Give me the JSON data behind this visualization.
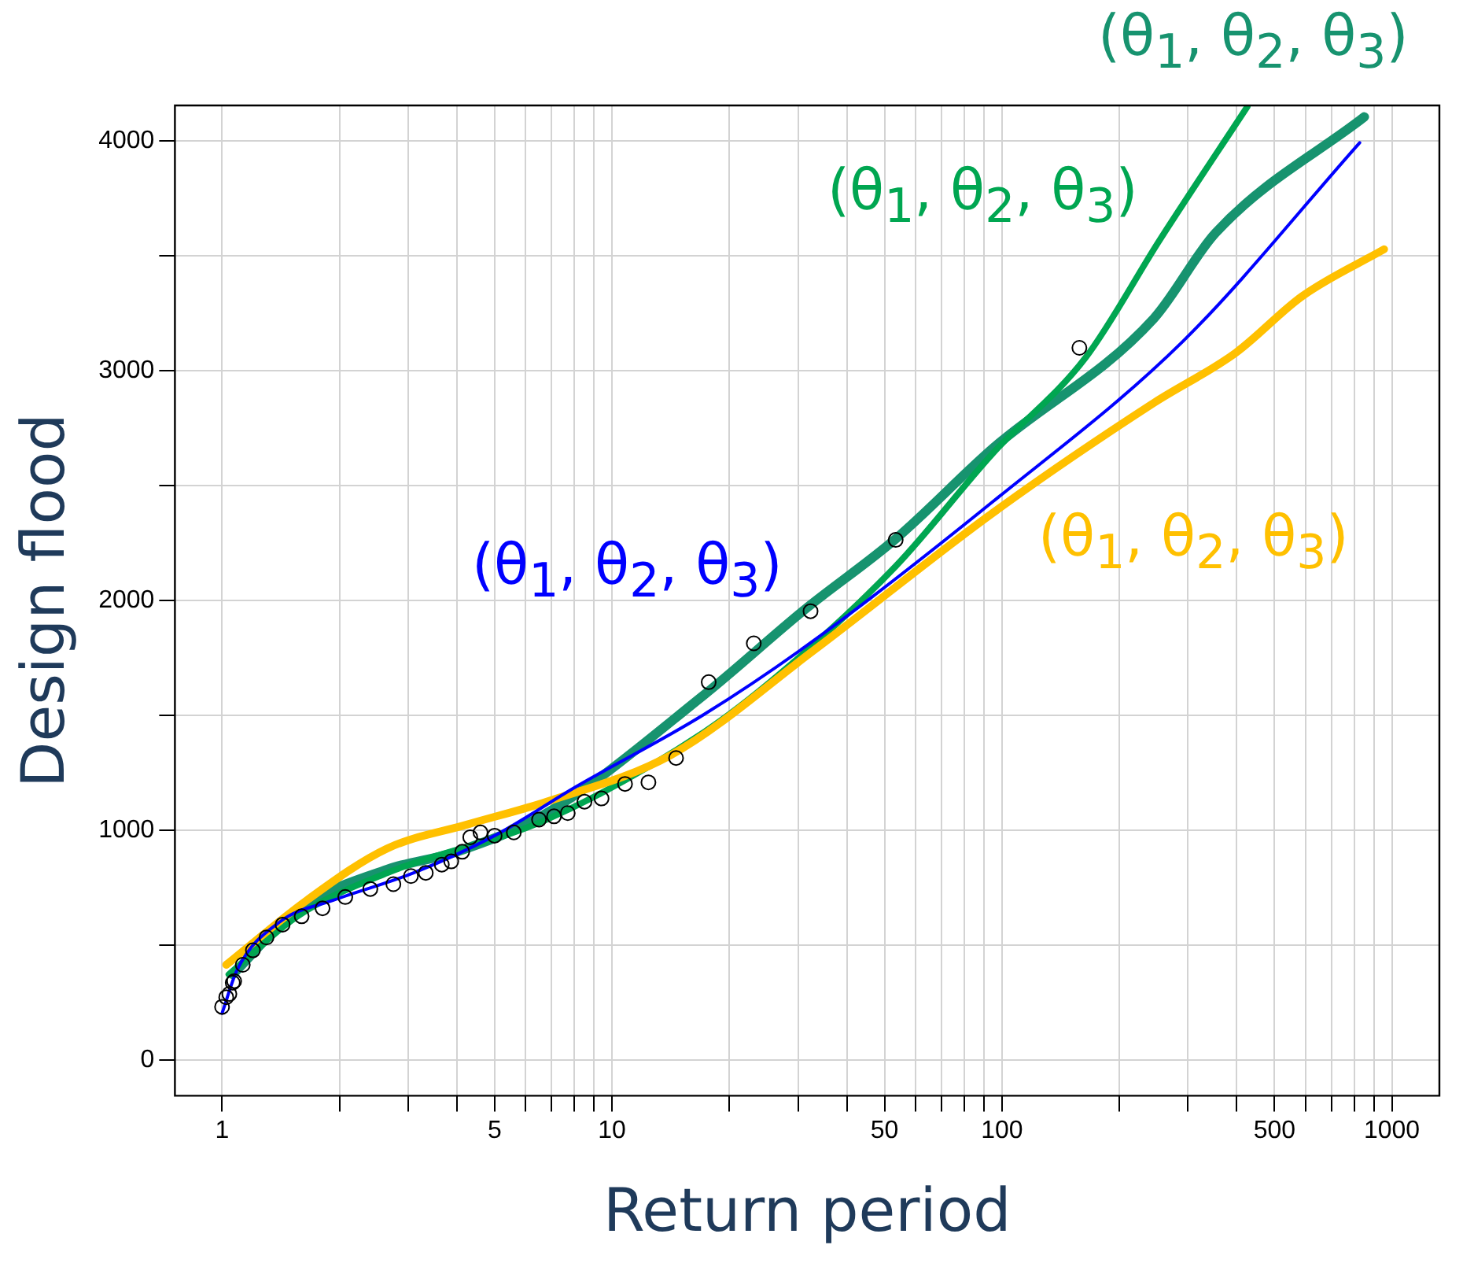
{
  "chart_data": {
    "type": "line",
    "xlabel": "Return period",
    "ylabel": "Design flood",
    "log": "x",
    "xlim": [
      0.757,
      1324
    ],
    "ylim": [
      -155,
      4155
    ],
    "xticks": [
      1,
      {
        "value": 2,
        "label": null
      },
      {
        "value": 3,
        "label": null
      },
      {
        "value": 4,
        "label": null
      },
      5,
      {
        "value": 6,
        "label": null
      },
      {
        "value": 7,
        "label": null
      },
      {
        "value": 8,
        "label": null
      },
      {
        "value": 9,
        "label": null
      },
      10,
      {
        "value": 20,
        "label": null
      },
      {
        "value": 30,
        "label": null
      },
      {
        "value": 40,
        "label": null
      },
      50,
      {
        "value": 60,
        "label": null
      },
      {
        "value": 70,
        "label": null
      },
      {
        "value": 80,
        "label": null
      },
      {
        "value": 90,
        "label": null
      },
      100,
      {
        "value": 200,
        "label": null
      },
      {
        "value": 300,
        "label": null
      },
      {
        "value": 400,
        "label": null
      },
      500,
      {
        "value": 600,
        "label": null
      },
      {
        "value": 700,
        "label": null
      },
      {
        "value": 800,
        "label": null
      },
      {
        "value": 900,
        "label": null
      },
      1000
    ],
    "yticks": [
      0,
      {
        "value": 500,
        "label": null
      },
      1000,
      {
        "value": 1500,
        "label": null
      },
      2000,
      {
        "value": 2500,
        "label": null
      },
      3000,
      {
        "value": 3500,
        "label": null
      },
      4000
    ],
    "grid": true,
    "legend": false,
    "series": [
      {
        "type": "scatter",
        "marker": "circle",
        "color": "#000000",
        "x": [
          1,
          1.025,
          1.044,
          1.065,
          1.074,
          1.13,
          1.2,
          1.3,
          1.43,
          1.6,
          1.81,
          2.07,
          2.4,
          2.75,
          3.05,
          3.33,
          3.66,
          3.87,
          4.13,
          4.33,
          4.6,
          5.0,
          5.6,
          6.5,
          7.1,
          7.7,
          8.5,
          9.4,
          10.8,
          12.4,
          14.6,
          17.7,
          23.1,
          32.3,
          53.4,
          158
        ],
        "values": [
          232,
          274,
          288,
          337,
          344,
          415,
          478,
          534,
          590,
          626,
          661,
          710,
          745,
          766,
          801,
          815,
          851,
          865,
          907,
          970,
          991,
          977,
          991,
          1047,
          1061,
          1075,
          1125,
          1139,
          1202,
          1209,
          1315,
          1645,
          1814,
          1954,
          2264,
          3100
        ]
      },
      {
        "name": "(θ$_{1}$, θ$_{2}$, θ$_{3}$)",
        "marker": "none",
        "color": "#0000ff",
        "x": [
          1,
          1.094,
          1.415,
          1.93,
          3.1,
          5,
          8.05,
          17.2,
          32.6,
          95,
          291,
          827
        ],
        "values": [
          204,
          394,
          605,
          696,
          815,
          977,
          1188,
          1504,
          1821,
          2432,
          3128,
          3993
        ]
      },
      {
        "name": "(θ$_{1}$, θ$_{2}$, θ$_{3}$)",
        "marker": "none",
        "color": "#ffc000",
        "x": [
          1.025,
          1.65,
          2.65,
          4.26,
          6.8,
          14.2,
          32.6,
          95,
          245,
          398,
          589,
          955
        ],
        "values": [
          415,
          696,
          921,
          1026,
          1125,
          1329,
          1778,
          2383,
          2860,
          3079,
          3325,
          3529
        ]
      },
      {
        "name": "(θ$_{1}$, θ$_{2}$, θ$_{3}$)",
        "marker": "none",
        "color": "#00a651",
        "x": [
          1.04,
          1.56,
          2.65,
          6.8,
          17.2,
          26.9,
          53.5,
          95,
          164,
          254,
          426
        ],
        "values": [
          373,
          626,
          815,
          1047,
          1427,
          1680,
          2151,
          2643,
          3058,
          3570,
          4150
        ]
      },
      {
        "name": "(θ$_{1}$, θ$_{2}$, θ$_{3}$)",
        "marker": "none",
        "color": "#17936f",
        "x": [
          1.065,
          1.56,
          2.65,
          4,
          6.8,
          17.2,
          31.2,
          53.5,
          95,
          245,
          353,
          850
        ],
        "values": [
          373,
          654,
          830,
          907,
          1075,
          1589,
          1961,
          2270,
          2664,
          3227,
          3600,
          4105
        ]
      }
    ]
  }
}
